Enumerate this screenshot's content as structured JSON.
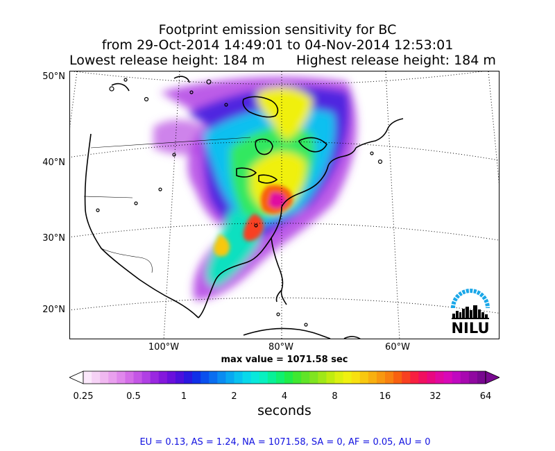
{
  "title": {
    "line1": "Footprint emission sensitivity for BC",
    "line2": "from 29-Oct-2014 14:49:01 to 04-Nov-2014 12:53:01",
    "lowest_release": "Lowest release height: 184 m",
    "highest_release": "Highest release height: 184 m"
  },
  "map": {
    "lat_labels": [
      "50°N",
      "40°N",
      "30°N",
      "20°N"
    ],
    "lon_labels": [
      "100°W",
      "80°W",
      "60°W"
    ],
    "max_value": "max value = 1071.58 sec",
    "logo_text": "NILU"
  },
  "colorbar": {
    "ticks": [
      "0.25",
      "0.5",
      "1",
      "2",
      "4",
      "8",
      "16",
      "32",
      "64"
    ],
    "unit": "seconds",
    "colors": [
      "#fbe8fb",
      "#f6d2f6",
      "#f0b8f0",
      "#e9a0ee",
      "#e088ec",
      "#d46ee8",
      "#c456e6",
      "#b040e4",
      "#9a28e0",
      "#8418dc",
      "#6a10dc",
      "#4c10dc",
      "#2a18e0",
      "#1030e8",
      "#0a50ee",
      "#0a6ef0",
      "#0a8cf2",
      "#08a8f2",
      "#08c2f0",
      "#08d8ea",
      "#08e8dc",
      "#08f0c0",
      "#08f098",
      "#10f070",
      "#20ec48",
      "#40e830",
      "#60e428",
      "#80e420",
      "#a0e818",
      "#c0ec10",
      "#dcf010",
      "#f0f010",
      "#f8e010",
      "#f8c810",
      "#f8b010",
      "#f89810",
      "#f88010",
      "#f86010",
      "#f84020",
      "#f82040",
      "#f01060",
      "#e80880",
      "#e008a0",
      "#d808b8",
      "#c008c0",
      "#a808b0",
      "#9008a0",
      "#780890"
    ]
  },
  "stats": {
    "line": "EU = 0.13,  AS = 1.24,  NA = 1071.58,  SA = 0,  AF = 0.05,  AU = 0"
  },
  "palette": {
    "logo_blue": "#1aa7e8",
    "stats_text": "#1010e0"
  }
}
